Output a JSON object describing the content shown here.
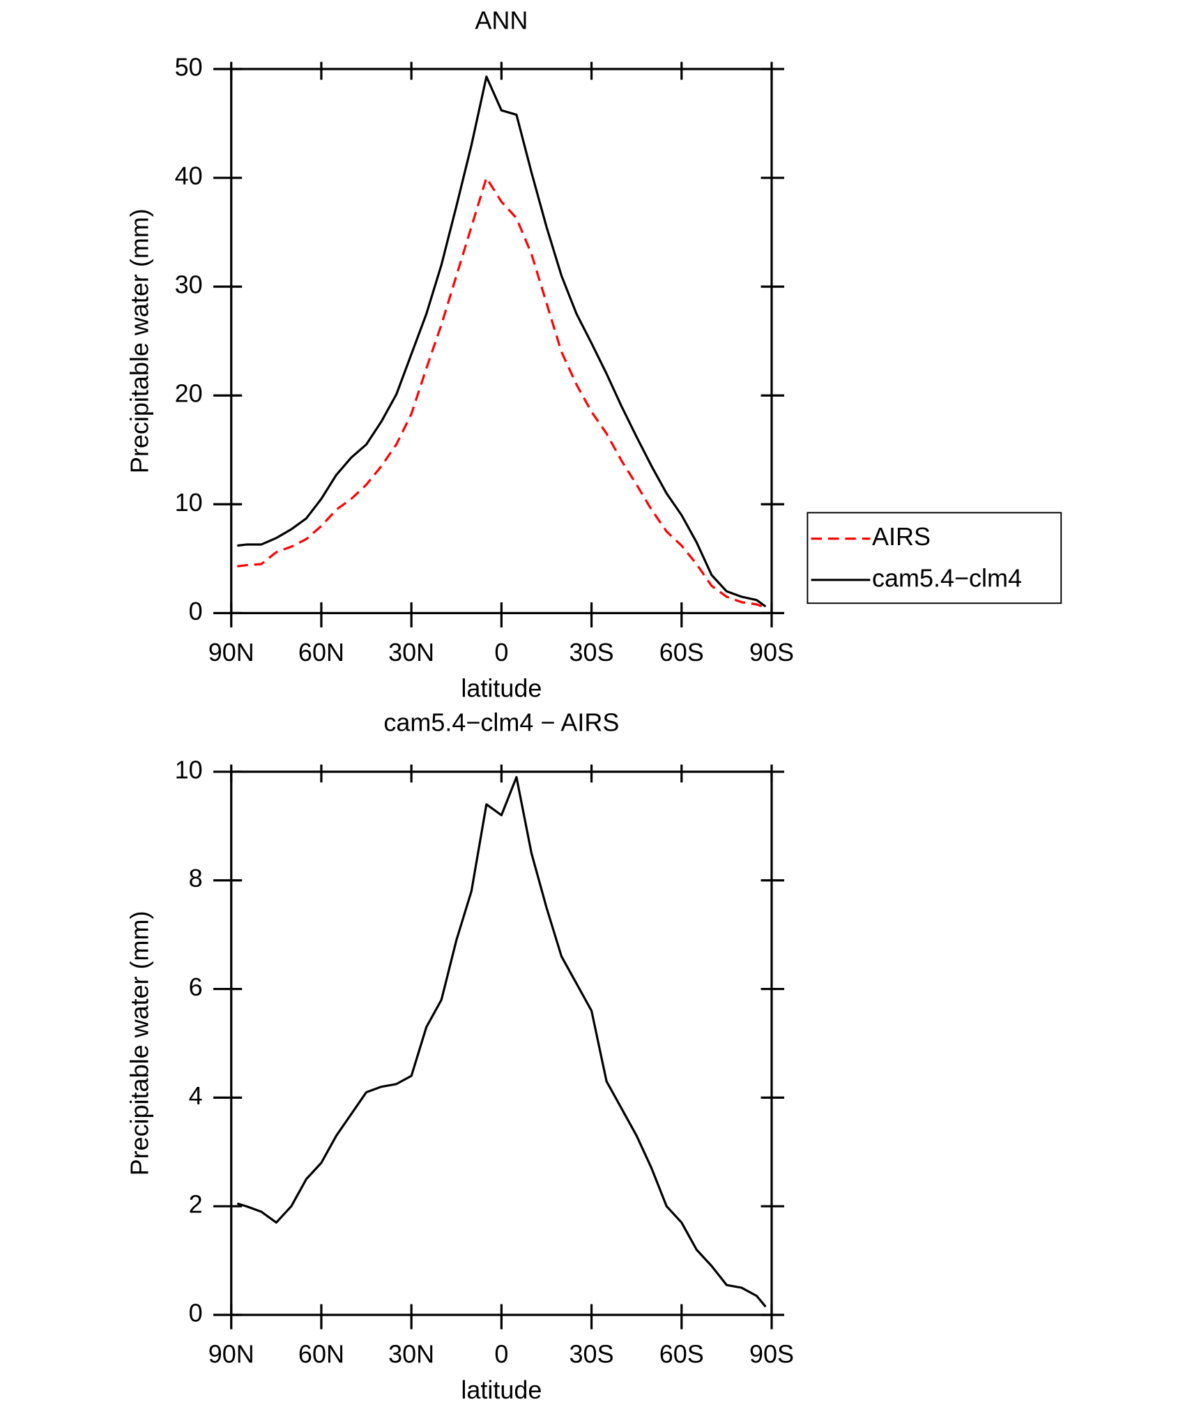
{
  "chart_data": [
    {
      "type": "line",
      "title": "ANN",
      "x_label": "latitude",
      "y_label": "Precipitable water (mm)",
      "x": [
        88,
        85,
        80,
        75,
        70,
        65,
        60,
        55,
        50,
        45,
        40,
        35,
        30,
        25,
        20,
        15,
        10,
        5,
        0,
        -5,
        -10,
        -15,
        -20,
        -25,
        -30,
        -35,
        -40,
        -45,
        -50,
        -55,
        -60,
        -65,
        -70,
        -75,
        -80,
        -85,
        -88
      ],
      "series": [
        {
          "name": "AIRS",
          "color": "#ff0000",
          "dashed": true,
          "values": [
            4.3,
            4.4,
            4.5,
            5.6,
            6.1,
            6.8,
            8.0,
            9.5,
            10.5,
            11.8,
            13.5,
            15.5,
            18.3,
            22.5,
            26.5,
            31,
            35.5,
            40,
            37.8,
            36.3,
            33,
            28.5,
            24,
            21,
            18.5,
            16.5,
            14,
            11.8,
            9.5,
            7.5,
            6.2,
            4.5,
            2.5,
            1.5,
            1,
            0.8,
            0.5
          ]
        },
        {
          "name": "cam5.4−clm4",
          "color": "#000000",
          "dashed": false,
          "values": [
            6.2,
            6.3,
            6.3,
            6.9,
            7.7,
            8.7,
            10.5,
            12.7,
            14.3,
            15.5,
            17.6,
            20.1,
            23.8,
            27.5,
            32,
            37.4,
            43,
            49.3,
            46.2,
            45.8,
            40.5,
            35.5,
            31,
            27.5,
            24.8,
            22,
            19,
            16.2,
            13.5,
            11,
            9,
            6.5,
            3.5,
            2,
            1.5,
            1.2,
            0.6
          ]
        }
      ],
      "xlim": [
        90,
        -90
      ],
      "xticks": [
        {
          "value": 90,
          "label": "90N"
        },
        {
          "value": 60,
          "label": "60N"
        },
        {
          "value": 30,
          "label": "30N"
        },
        0,
        {
          "value": -30,
          "label": "30S"
        },
        {
          "value": -60,
          "label": "60S"
        },
        {
          "value": -90,
          "label": "90S"
        }
      ],
      "ylim": [
        0,
        50
      ],
      "yticks": [
        0,
        10,
        20,
        30,
        40,
        50
      ],
      "legend": "right"
    },
    {
      "type": "line",
      "title": "cam5.4−clm4 − AIRS",
      "x_label": "latitude",
      "y_label": "Precipitable water (mm)",
      "x": [
        88,
        85,
        80,
        75,
        70,
        65,
        60,
        55,
        50,
        45,
        40,
        35,
        30,
        25,
        20,
        15,
        10,
        5,
        0,
        -5,
        -10,
        -15,
        -20,
        -25,
        -30,
        -35,
        -40,
        -45,
        -50,
        -55,
        -60,
        -65,
        -70,
        -75,
        -80,
        -85,
        -88
      ],
      "values": [
        2.05,
        2.0,
        1.9,
        1.7,
        2.0,
        2.5,
        2.8,
        3.3,
        3.7,
        4.1,
        4.2,
        4.25,
        4.4,
        5.3,
        5.8,
        6.9,
        7.8,
        9.4,
        9.2,
        9.9,
        8.5,
        7.5,
        6.6,
        6.1,
        5.6,
        4.3,
        3.8,
        3.3,
        2.7,
        2.0,
        1.7,
        1.2,
        0.9,
        0.55,
        0.5,
        0.35,
        0.15
      ],
      "color": "#000000",
      "xlim": [
        90,
        -90
      ],
      "xticks": [
        {
          "value": 90,
          "label": "90N"
        },
        {
          "value": 60,
          "label": "60N"
        },
        {
          "value": 30,
          "label": "30N"
        },
        0,
        {
          "value": -30,
          "label": "30S"
        },
        {
          "value": -60,
          "label": "60S"
        },
        {
          "value": -90,
          "label": "90S"
        }
      ],
      "ylim": [
        0,
        10
      ],
      "yticks": [
        0,
        2,
        4,
        6,
        8,
        10
      ]
    }
  ]
}
